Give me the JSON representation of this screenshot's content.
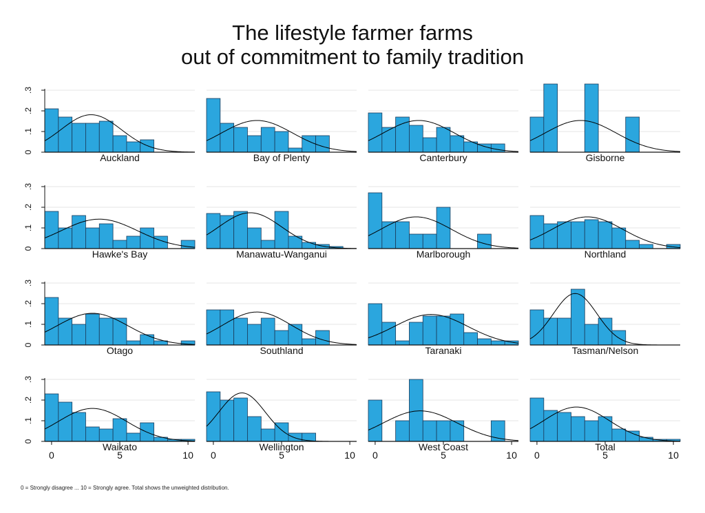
{
  "chart_data": {
    "type": "bar",
    "title_lines": [
      "The lifestyle farmer farms",
      "out of commitment to family tradition"
    ],
    "footnote": "0 = Strongly disagree ... 10 = Strongly agree. Total shows the unweighted distribution.",
    "x_ticks": [
      0,
      5,
      10
    ],
    "x_tick_labels": [
      "0",
      "5",
      "10"
    ],
    "y_ticks": [
      0,
      0.1,
      0.2,
      0.3
    ],
    "y_tick_labels": [
      "0",
      ".1",
      ".2",
      ".3"
    ],
    "xlim": [
      -0.5,
      10.5
    ],
    "ylim": [
      0,
      0.35
    ],
    "grid": true,
    "bar_color": "#2ba6de",
    "bar_edge_color": "#1a3a5a",
    "curve_color": "#000000",
    "panels": [
      {
        "label": "Auckland",
        "bins": [
          0,
          1,
          2,
          3,
          4,
          5,
          6,
          7,
          8,
          9,
          10
        ],
        "values": [
          0.21,
          0.17,
          0.14,
          0.14,
          0.15,
          0.08,
          0.05,
          0.06,
          0,
          0,
          0
        ],
        "normal": {
          "mean": 2.9,
          "sd": 2.2
        }
      },
      {
        "label": "Bay of Plenty",
        "bins": [
          0,
          1,
          2,
          3,
          4,
          5,
          6,
          7,
          8,
          9,
          10
        ],
        "values": [
          0.26,
          0.14,
          0.12,
          0.08,
          0.12,
          0.1,
          0.02,
          0.08,
          0.08,
          0,
          0
        ],
        "normal": {
          "mean": 3.2,
          "sd": 2.6
        }
      },
      {
        "label": "Canterbury",
        "bins": [
          0,
          1,
          2,
          3,
          4,
          5,
          6,
          7,
          8,
          9,
          10
        ],
        "values": [
          0.19,
          0.12,
          0.17,
          0.13,
          0.07,
          0.12,
          0.08,
          0.05,
          0.04,
          0.04,
          0
        ],
        "normal": {
          "mean": 3.2,
          "sd": 2.6
        }
      },
      {
        "label": "Gisborne",
        "bins": [
          0,
          1,
          2,
          3,
          4,
          5,
          6,
          7,
          8,
          9,
          10
        ],
        "values": [
          0.17,
          0.33,
          0,
          0,
          0.33,
          0,
          0,
          0.17,
          0,
          0,
          0
        ],
        "normal": {
          "mean": 3.2,
          "sd": 2.6
        }
      },
      {
        "label": "Hawke's Bay",
        "bins": [
          0,
          1,
          2,
          3,
          4,
          5,
          6,
          7,
          8,
          9,
          10
        ],
        "values": [
          0.18,
          0.1,
          0.16,
          0.1,
          0.12,
          0.04,
          0.06,
          0.1,
          0.06,
          0,
          0.04
        ],
        "normal": {
          "mean": 3.5,
          "sd": 2.8
        }
      },
      {
        "label": "Manawatu-Wanganui",
        "bins": [
          0,
          1,
          2,
          3,
          4,
          5,
          6,
          7,
          8,
          9,
          10
        ],
        "values": [
          0.17,
          0.16,
          0.18,
          0.1,
          0.04,
          0.18,
          0.06,
          0.03,
          0.02,
          0.01,
          0
        ],
        "normal": {
          "mean": 2.7,
          "sd": 2.3
        }
      },
      {
        "label": "Marlborough",
        "bins": [
          0,
          1,
          2,
          3,
          4,
          5,
          6,
          7,
          8,
          9,
          10
        ],
        "values": [
          0.27,
          0.13,
          0.13,
          0.07,
          0.07,
          0.2,
          0,
          0,
          0.07,
          0,
          0
        ],
        "normal": {
          "mean": 3.0,
          "sd": 2.6
        }
      },
      {
        "label": "Northland",
        "bins": [
          0,
          1,
          2,
          3,
          4,
          5,
          6,
          7,
          8,
          9,
          10
        ],
        "values": [
          0.16,
          0.12,
          0.13,
          0.13,
          0.14,
          0.13,
          0.1,
          0.04,
          0.02,
          0,
          0.02
        ],
        "normal": {
          "mean": 3.7,
          "sd": 2.6
        }
      },
      {
        "label": "Otago",
        "bins": [
          0,
          1,
          2,
          3,
          4,
          5,
          6,
          7,
          8,
          9,
          10
        ],
        "values": [
          0.23,
          0.13,
          0.1,
          0.15,
          0.13,
          0.13,
          0.02,
          0.05,
          0.02,
          0,
          0.02
        ],
        "normal": {
          "mean": 3.0,
          "sd": 2.6
        }
      },
      {
        "label": "Southland",
        "bins": [
          0,
          1,
          2,
          3,
          4,
          5,
          6,
          7,
          8,
          9,
          10
        ],
        "values": [
          0.17,
          0.17,
          0.13,
          0.1,
          0.13,
          0.07,
          0.1,
          0.03,
          0.07,
          0,
          0
        ],
        "normal": {
          "mean": 3.2,
          "sd": 2.5
        }
      },
      {
        "label": "Taranaki",
        "bins": [
          0,
          1,
          2,
          3,
          4,
          5,
          6,
          7,
          8,
          9,
          10
        ],
        "values": [
          0.2,
          0.11,
          0.02,
          0.11,
          0.14,
          0.14,
          0.15,
          0.06,
          0.03,
          0.02,
          0.02
        ],
        "normal": {
          "mean": 4.1,
          "sd": 2.7
        }
      },
      {
        "label": "Tasman/Nelson",
        "bins": [
          0,
          1,
          2,
          3,
          4,
          5,
          6,
          7,
          8,
          9,
          10
        ],
        "values": [
          0.17,
          0.13,
          0.13,
          0.27,
          0.1,
          0.13,
          0.07,
          0,
          0,
          0,
          0
        ],
        "normal": {
          "mean": 2.8,
          "sd": 1.6
        }
      },
      {
        "label": "Waikato",
        "bins": [
          0,
          1,
          2,
          3,
          4,
          5,
          6,
          7,
          8,
          9,
          10
        ],
        "values": [
          0.23,
          0.19,
          0.14,
          0.07,
          0.06,
          0.11,
          0.04,
          0.09,
          0.02,
          0.01,
          0.01
        ],
        "normal": {
          "mean": 3.0,
          "sd": 2.5
        }
      },
      {
        "label": "Wellington",
        "bins": [
          0,
          1,
          2,
          3,
          4,
          5,
          6,
          7,
          8,
          9,
          10
        ],
        "values": [
          0.24,
          0.2,
          0.21,
          0.12,
          0.06,
          0.09,
          0.04,
          0.04,
          0,
          0,
          0
        ],
        "normal": {
          "mean": 2.1,
          "sd": 1.7
        }
      },
      {
        "label": "West Coast",
        "bins": [
          0,
          1,
          2,
          3,
          4,
          5,
          6,
          7,
          8,
          9,
          10
        ],
        "values": [
          0.2,
          0,
          0.1,
          0.3,
          0.1,
          0.1,
          0.1,
          0,
          0,
          0.1,
          0
        ],
        "normal": {
          "mean": 3.3,
          "sd": 2.7
        }
      },
      {
        "label": "Total",
        "bins": [
          0,
          1,
          2,
          3,
          4,
          5,
          6,
          7,
          8,
          9,
          10
        ],
        "values": [
          0.21,
          0.15,
          0.14,
          0.12,
          0.1,
          0.12,
          0.06,
          0.05,
          0.02,
          0.01,
          0.01
        ],
        "normal": {
          "mean": 2.9,
          "sd": 2.4
        }
      }
    ]
  }
}
